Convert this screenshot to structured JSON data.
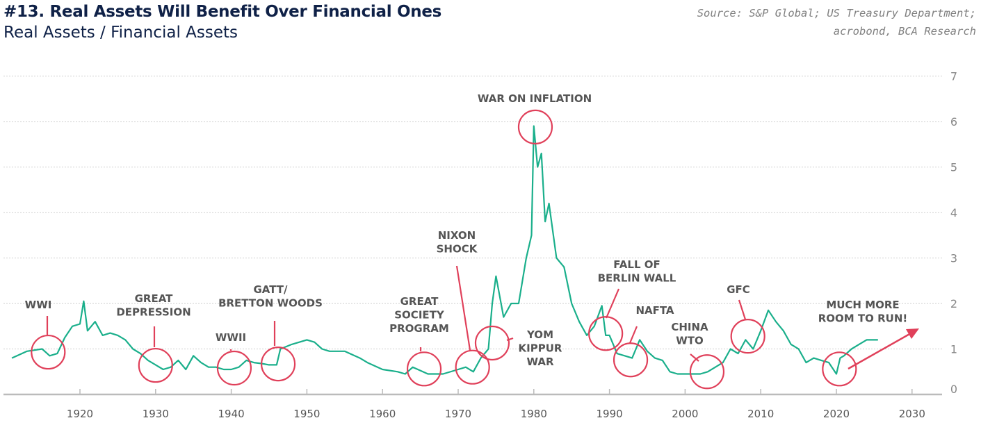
{
  "header": {
    "title": "#13. Real Assets Will Benefit Over Financial Ones",
    "subtitle": "Real Assets / Financial Assets",
    "source_line1": "Source:  S&P Global; US Treasury Department;",
    "source_line2": "acrobond, BCA Research"
  },
  "chart_data": {
    "type": "line",
    "title": "#13. Real Assets Will Benefit Over Financial Ones",
    "subtitle": "Real Assets / Financial Assets",
    "xlabel": "",
    "ylabel": "",
    "xlim": [
      1911,
      2034
    ],
    "ylim": [
      0,
      7
    ],
    "x_ticks": [
      1920,
      1930,
      1940,
      1950,
      1960,
      1970,
      1980,
      1990,
      2000,
      2010,
      2020,
      2030
    ],
    "y_ticks": [
      0,
      1,
      2,
      3,
      4,
      5,
      6,
      7
    ],
    "y_axis_side": "right",
    "grid": "horizontal dashed",
    "colors": {
      "line": "#1aaf8b",
      "annotation": "#e0405a",
      "grid": "#cccccc"
    },
    "series": [
      {
        "x": [
          1911,
          1913,
          1915,
          1916,
          1917,
          1918,
          1919,
          1920,
          1920.5,
          1921,
          1922,
          1923,
          1924,
          1925,
          1926,
          1927,
          1928,
          1929,
          1930,
          1931,
          1932,
          1933,
          1934,
          1935,
          1936,
          1937,
          1938,
          1939,
          1940,
          1941,
          1942,
          1943,
          1944,
          1945,
          1946,
          1946.5,
          1948,
          1950,
          1951,
          1952,
          1953,
          1955,
          1957,
          1958,
          1960,
          1962,
          1963,
          1964,
          1966,
          1968,
          1970,
          1971,
          1972,
          1973,
          1974,
          1974.5,
          1975,
          1976,
          1977,
          1978,
          1979,
          1979.7,
          1980,
          1980.5,
          1981,
          1981.5,
          1982,
          1983,
          1984,
          1985,
          1986,
          1987,
          1988,
          1989,
          1989.5,
          1990,
          1991,
          1992,
          1993,
          1994,
          1995,
          1996,
          1997,
          1998,
          1999,
          2000,
          2002,
          2003,
          2004,
          2005,
          2006,
          2007,
          2008,
          2009,
          2010,
          2011,
          2012,
          2013,
          2014,
          2015,
          2016,
          2017,
          2018,
          2019,
          2020,
          2020.5,
          2021,
          2022,
          2023,
          2024,
          2025.5
        ],
        "y": [
          0.8,
          0.95,
          1.0,
          0.85,
          0.9,
          1.25,
          1.5,
          1.55,
          2.05,
          1.4,
          1.6,
          1.3,
          1.35,
          1.3,
          1.2,
          1.0,
          0.9,
          0.75,
          0.65,
          0.55,
          0.6,
          0.75,
          0.55,
          0.85,
          0.7,
          0.6,
          0.6,
          0.55,
          0.55,
          0.6,
          0.75,
          0.7,
          0.68,
          0.65,
          0.65,
          1.0,
          1.1,
          1.2,
          1.15,
          1.0,
          0.95,
          0.95,
          0.8,
          0.7,
          0.55,
          0.5,
          0.45,
          0.6,
          0.45,
          0.45,
          0.55,
          0.6,
          0.5,
          0.8,
          1.0,
          2.0,
          2.6,
          1.7,
          2.0,
          2.0,
          3.0,
          3.5,
          5.9,
          5.0,
          5.3,
          3.8,
          4.2,
          3.0,
          2.8,
          2.0,
          1.6,
          1.3,
          1.5,
          1.95,
          1.3,
          1.3,
          0.9,
          0.85,
          0.8,
          1.2,
          0.95,
          0.8,
          0.75,
          0.5,
          0.45,
          0.45,
          0.45,
          0.5,
          0.6,
          0.7,
          1.0,
          0.9,
          1.2,
          1.0,
          1.4,
          1.85,
          1.6,
          1.4,
          1.1,
          1.0,
          0.7,
          0.8,
          0.75,
          0.7,
          0.45,
          0.8,
          0.85,
          1.0,
          1.1,
          1.2,
          1.2
        ]
      }
    ],
    "annotations": [
      {
        "lines": [
          "WWI"
        ],
        "year": 1915.8,
        "value": 0.93
      },
      {
        "lines": [
          "GREAT",
          "DEPRESSION"
        ],
        "year": 1930,
        "value": 0.64
      },
      {
        "lines": [
          "WWII"
        ],
        "year": 1940.4,
        "value": 0.58
      },
      {
        "lines": [
          "GATT/",
          "BRETTON WOODS"
        ],
        "year": 1946.2,
        "value": 0.67
      },
      {
        "lines": [
          "GREAT",
          "SOCIETY",
          "PROGRAM"
        ],
        "year": 1965.5,
        "value": 0.56
      },
      {
        "lines": [
          "NIXON",
          "SHOCK"
        ],
        "year": 1971.9,
        "value": 0.6
      },
      {
        "lines": [
          "YOM",
          "KIPPUR",
          "WAR"
        ],
        "year": 1974.5,
        "value": 1.13
      },
      {
        "lines": [
          "WAR ON INFLATION"
        ],
        "year": 1980.2,
        "value": 5.88
      },
      {
        "lines": [
          "FALL OF",
          "BERLIN WALL"
        ],
        "year": 1989.5,
        "value": 1.34
      },
      {
        "lines": [
          "NAFTA"
        ],
        "year": 1992.8,
        "value": 0.76
      },
      {
        "lines": [
          "CHINA",
          "WTO"
        ],
        "year": 2002.9,
        "value": 0.5
      },
      {
        "lines": [
          "GFC"
        ],
        "year": 2008.3,
        "value": 1.28
      },
      {
        "lines": [
          "MUCH MORE",
          "ROOM TO RUN!"
        ],
        "year": 2020.4,
        "value": 0.56
      }
    ]
  }
}
